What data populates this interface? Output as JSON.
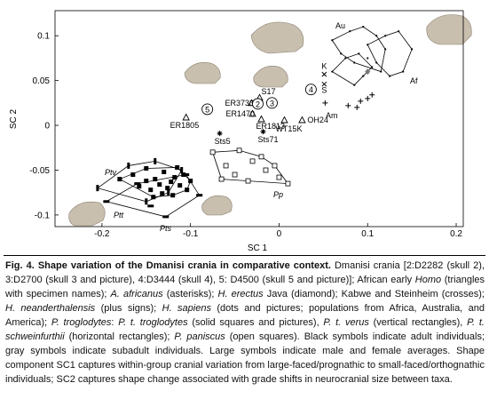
{
  "chart_data": {
    "type": "scatter",
    "xlabel": "SC 1",
    "ylabel": "SC 2",
    "xlim": [
      -0.253,
      0.208
    ],
    "ylim": [
      -0.113,
      0.128
    ],
    "xticks": [
      -0.2,
      -0.1,
      0,
      0.1,
      0.2
    ],
    "yticks": [
      -0.1,
      -0.05,
      0,
      0.05,
      0.1
    ],
    "series": [
      {
        "name": "Ptt",
        "marker": "square",
        "color": "#000000",
        "hull": true,
        "x": [
          -0.165,
          -0.158,
          -0.15,
          -0.145,
          -0.14,
          -0.135,
          -0.13,
          -0.126,
          -0.122,
          -0.118,
          -0.112,
          -0.108,
          -0.104,
          -0.142,
          -0.132,
          -0.12,
          -0.15,
          -0.115,
          -0.18,
          -0.1
        ],
        "values": [
          -0.055,
          -0.068,
          -0.048,
          -0.072,
          -0.06,
          -0.066,
          -0.052,
          -0.07,
          -0.063,
          -0.058,
          -0.067,
          -0.055,
          -0.072,
          -0.08,
          -0.076,
          -0.078,
          -0.062,
          -0.047,
          -0.06,
          -0.062
        ]
      },
      {
        "name": "Ptv",
        "marker": "vrect",
        "color": "#000000",
        "hull": true,
        "x": [
          -0.205,
          -0.17,
          -0.14,
          -0.11,
          -0.15,
          -0.125
        ],
        "values": [
          -0.07,
          -0.045,
          -0.04,
          -0.05,
          -0.085,
          -0.075
        ]
      },
      {
        "name": "Pts",
        "marker": "hrect",
        "color": "#000000",
        "hull": true,
        "x": [
          -0.195,
          -0.16,
          -0.128,
          -0.09,
          -0.105,
          -0.145
        ],
        "values": [
          -0.085,
          -0.065,
          -0.102,
          -0.078,
          -0.055,
          -0.09
        ]
      },
      {
        "name": "Pp",
        "marker": "open-square",
        "color": "#000000",
        "hull": true,
        "x": [
          -0.075,
          -0.06,
          -0.045,
          -0.03,
          -0.015,
          0,
          0.01,
          -0.05,
          -0.035,
          -0.02,
          -0.065,
          -0.005
        ],
        "values": [
          -0.03,
          -0.045,
          -0.028,
          -0.04,
          -0.05,
          -0.058,
          -0.065,
          -0.055,
          -0.062,
          -0.035,
          -0.06,
          -0.045
        ]
      },
      {
        "name": "Au",
        "marker": "dot",
        "color": "#000000",
        "hull": true,
        "x": [
          0.06,
          0.08,
          0.095,
          0.11,
          0.12,
          0.1,
          0.085,
          0.07,
          0.115
        ],
        "values": [
          0.095,
          0.105,
          0.11,
          0.1,
          0.085,
          0.075,
          0.07,
          0.08,
          0.06
        ]
      },
      {
        "name": "Af",
        "marker": "dot",
        "color": "#000000",
        "hull": true,
        "x": [
          0.1,
          0.12,
          0.135,
          0.15,
          0.14,
          0.125,
          0.11
        ],
        "values": [
          0.09,
          0.1,
          0.105,
          0.085,
          0.06,
          0.055,
          0.07
        ]
      },
      {
        "name": "Am",
        "marker": "dot",
        "color": "#000000",
        "hull": true,
        "x": [
          0.06,
          0.075,
          0.09,
          0.105,
          0.085,
          0.095
        ],
        "values": [
          0.06,
          0.075,
          0.08,
          0.065,
          0.045,
          0.055
        ]
      },
      {
        "marker": "triangle",
        "color": "#000000",
        "labels": [
          "ER3733",
          "S17",
          "ER1470",
          "ER1813",
          "ER1805",
          "WT15K",
          "OH24"
        ],
        "x": [
          -0.031,
          -0.022,
          -0.03,
          -0.02,
          -0.105,
          0.006,
          0.026
        ],
        "values": [
          0.025,
          0.031,
          0.013,
          0.007,
          0.009,
          0.006,
          0.006
        ]
      },
      {
        "marker": "asterisk",
        "color": "#000000",
        "labels": [
          "Sts5",
          "Sts71"
        ],
        "x": [
          -0.067,
          -0.018
        ],
        "values": [
          -0.009,
          -0.007
        ]
      },
      {
        "marker": "cross",
        "color": "#000000",
        "labels": [
          "K",
          "S"
        ],
        "x": [
          0.051,
          0.051
        ],
        "values": [
          0.057,
          0.046
        ]
      },
      {
        "marker": "plus",
        "color": "#000000",
        "x": [
          0.052,
          0.078,
          0.092,
          0.1,
          0.088,
          0.105
        ],
        "values": [
          0.025,
          0.022,
          0.027,
          0.03,
          0.02,
          0.034
        ]
      },
      {
        "marker": "diamond",
        "color": "#777777",
        "x": [
          0.1
        ],
        "values": [
          0.06
        ]
      },
      {
        "marker": "circle-label",
        "color": "#000000",
        "labels": [
          "2",
          "3",
          "4",
          "5"
        ],
        "x": [
          -0.024,
          -0.008,
          0.036,
          -0.081
        ],
        "values": [
          0.024,
          0.025,
          0.04,
          0.018
        ]
      }
    ]
  },
  "caption": {
    "segments": [
      {
        "text": "Fig. 4. Shape variation of the Dmanisi crania in comparative context.",
        "style": "bold"
      },
      {
        "text": " Dmanisi crania [2:D2282 (skull 2), 3:D2700 (skull 3 and picture), 4:D3444 (skull 4), 5: D4500 (skull 5 and picture)]; African early ",
        "style": "normal"
      },
      {
        "text": "Homo",
        "style": "italic"
      },
      {
        "text": " (triangles with specimen names); ",
        "style": "normal"
      },
      {
        "text": "A. africanus",
        "style": "italic"
      },
      {
        "text": " (asterisks); ",
        "style": "normal"
      },
      {
        "text": "H. erectus",
        "style": "italic"
      },
      {
        "text": " Java (diamond); Kabwe and Steinheim (crosses); ",
        "style": "normal"
      },
      {
        "text": "H. neanderthalensis",
        "style": "italic"
      },
      {
        "text": " (plus signs); ",
        "style": "normal"
      },
      {
        "text": "H. sapiens",
        "style": "italic"
      },
      {
        "text": " (dots and pictures; populations from Africa, Australia, and America); ",
        "style": "normal"
      },
      {
        "text": "P. troglodytes",
        "style": "italic"
      },
      {
        "text": ": ",
        "style": "normal"
      },
      {
        "text": "P. t. troglodytes",
        "style": "italic"
      },
      {
        "text": " (solid squares and pictures), ",
        "style": "normal"
      },
      {
        "text": "P. t. verus",
        "style": "italic"
      },
      {
        "text": " (vertical rectangles), ",
        "style": "normal"
      },
      {
        "text": "P. t. schweinfurthii",
        "style": "italic"
      },
      {
        "text": " (horizontal rectangles); ",
        "style": "normal"
      },
      {
        "text": "P. paniscus",
        "style": "italic"
      },
      {
        "text": " (open squares). Black symbols indicate adult individuals; gray symbols indicate subadult individuals. Large symbols indicate male and female averages. Shape component SC1 captures within-group cranial variation from large-faced/prognathic to small-faced/orthognathic individuals; SC2 captures shape change associated with grade shifts in neurocranial size between taxa.",
        "style": "normal"
      }
    ]
  }
}
